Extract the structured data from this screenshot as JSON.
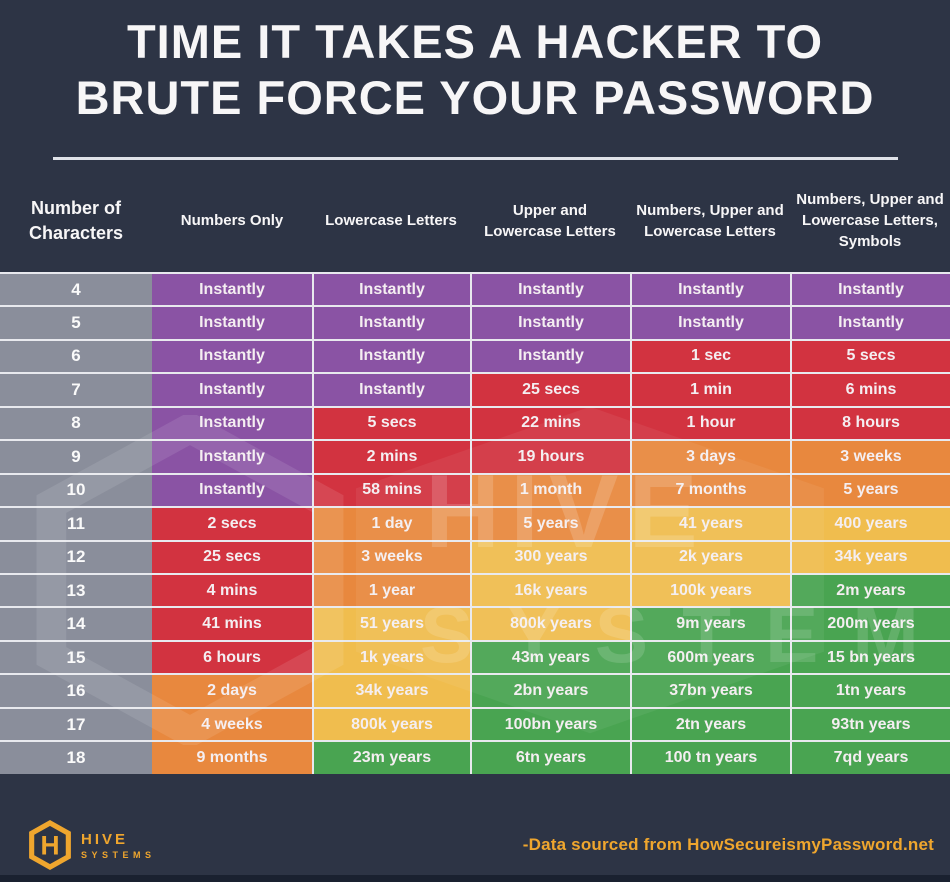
{
  "title": {
    "line1": "TIME IT TAKES A HACKER TO",
    "line2": "BRUTE FORCE YOUR PASSWORD"
  },
  "columns": [
    "Number of Characters",
    "Numbers Only",
    "Lowercase Letters",
    "Upper and Lowercase Letters",
    "Numbers, Upper and Lowercase Letters",
    "Numbers, Upper and Lowercase Letters, Symbols"
  ],
  "chart_data": {
    "type": "heatmap",
    "title": "Time it takes a hacker to brute force your password",
    "row_header": "Number of Characters",
    "rows": [
      4,
      5,
      6,
      7,
      8,
      9,
      10,
      11,
      12,
      13,
      14,
      15,
      16,
      17,
      18
    ],
    "columns": [
      "Numbers Only",
      "Lowercase Letters",
      "Upper and Lowercase Letters",
      "Numbers, Upper and Lowercase Letters",
      "Numbers, Upper and Lowercase Letters, Symbols"
    ],
    "values": [
      [
        "Instantly",
        "Instantly",
        "Instantly",
        "Instantly",
        "Instantly"
      ],
      [
        "Instantly",
        "Instantly",
        "Instantly",
        "Instantly",
        "Instantly"
      ],
      [
        "Instantly",
        "Instantly",
        "Instantly",
        "1 sec",
        "5 secs"
      ],
      [
        "Instantly",
        "Instantly",
        "25 secs",
        "1 min",
        "6 mins"
      ],
      [
        "Instantly",
        "5 secs",
        "22 mins",
        "1 hour",
        "8 hours"
      ],
      [
        "Instantly",
        "2 mins",
        "19 hours",
        "3 days",
        "3 weeks"
      ],
      [
        "Instantly",
        "58 mins",
        "1 month",
        "7 months",
        "5 years"
      ],
      [
        "2 secs",
        "1 day",
        "5 years",
        "41 years",
        "400 years"
      ],
      [
        "25 secs",
        "3 weeks",
        "300 years",
        "2k years",
        "34k years"
      ],
      [
        "4 mins",
        "1 year",
        "16k years",
        "100k years",
        "2m years"
      ],
      [
        "41 mins",
        "51 years",
        "800k years",
        "9m years",
        "200m years"
      ],
      [
        "6 hours",
        "1k years",
        "43m years",
        "600m years",
        "15 bn years"
      ],
      [
        "2 days",
        "34k years",
        "2bn years",
        "37bn years",
        "1tn years"
      ],
      [
        "4 weeks",
        "800k years",
        "100bn years",
        "2tn years",
        "93tn years"
      ],
      [
        "9 months",
        "23m years",
        "6tn years",
        "100 tn years",
        "7qd years"
      ]
    ],
    "levels": [
      [
        "purple",
        "purple",
        "purple",
        "purple",
        "purple"
      ],
      [
        "purple",
        "purple",
        "purple",
        "purple",
        "purple"
      ],
      [
        "purple",
        "purple",
        "purple",
        "red",
        "red"
      ],
      [
        "purple",
        "purple",
        "red",
        "red",
        "red"
      ],
      [
        "purple",
        "red",
        "red",
        "red",
        "red"
      ],
      [
        "purple",
        "red",
        "red",
        "orange",
        "orange"
      ],
      [
        "purple",
        "red",
        "orange",
        "orange",
        "orange"
      ],
      [
        "red",
        "orange",
        "orange",
        "yellow",
        "yellow"
      ],
      [
        "red",
        "orange",
        "yellow",
        "yellow",
        "yellow"
      ],
      [
        "red",
        "orange",
        "yellow",
        "yellow",
        "green"
      ],
      [
        "red",
        "yellow",
        "yellow",
        "green",
        "green"
      ],
      [
        "red",
        "yellow",
        "green",
        "green",
        "green"
      ],
      [
        "orange",
        "yellow",
        "green",
        "green",
        "green"
      ],
      [
        "orange",
        "yellow",
        "green",
        "green",
        "green"
      ],
      [
        "orange",
        "green",
        "green",
        "green",
        "green"
      ]
    ],
    "legend_position": "none",
    "grid": true
  },
  "watermark": {
    "line1": "HIVE",
    "line2": "SYSTEMS"
  },
  "footer": {
    "brand_line1": "HIVE",
    "brand_line2": "SYSTEMS",
    "source_note": "-Data sourced from HowSecureismyPassword.net"
  },
  "colors": {
    "background": "#2d3445",
    "gray": "#8a8e9b",
    "purple": "#8a53a4",
    "red": "#d23340",
    "orange": "#e8883e",
    "yellow": "#f0bd4e",
    "green": "#49a451",
    "gold": "#efa62e",
    "grid_line": "#e8e9ee",
    "divider": "#dfe2e8",
    "title_text": "#f7f6f7",
    "cell_text": "#f4eef1",
    "bottom_strip": "#1a2130"
  }
}
